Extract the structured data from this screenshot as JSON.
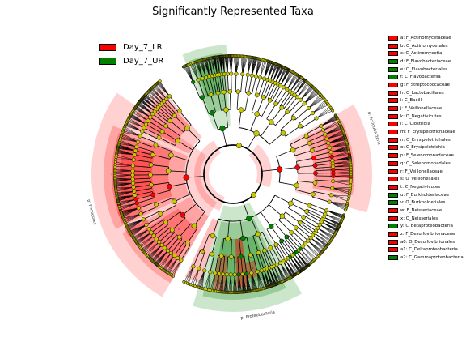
{
  "chart_data": {
    "type": "cladogram",
    "title": "Significantly Represented Taxa",
    "groups": [
      {
        "name": "Day_7_LR",
        "color": "#ff0000"
      },
      {
        "name": "Day_7_UR",
        "color": "#008000"
      }
    ],
    "sector_labels": [
      {
        "text": "p: Actinobacteria",
        "group": "Day_7_LR"
      },
      {
        "text": "p: Firmicutes",
        "group": "Day_7_LR"
      },
      {
        "text": "p: Proteobacteria",
        "group": "Day_7_UR"
      }
    ],
    "clades": [
      {
        "key": "a",
        "name": "F_Actinomycetaceae",
        "group": "Day_7_LR"
      },
      {
        "key": "b",
        "name": "O_Actinomycetales",
        "group": "Day_7_LR"
      },
      {
        "key": "c",
        "name": "C_Actinomycetia",
        "group": "Day_7_LR"
      },
      {
        "key": "d",
        "name": "F_Flavobacteriaceae",
        "group": "Day_7_UR"
      },
      {
        "key": "e",
        "name": "O_Flavobacteriales",
        "group": "Day_7_UR"
      },
      {
        "key": "f",
        "name": "C_Flavobacteriia",
        "group": "Day_7_UR"
      },
      {
        "key": "g",
        "name": "F_Streptococcaceae",
        "group": "Day_7_LR"
      },
      {
        "key": "h",
        "name": "O_Lactobacillales",
        "group": "Day_7_LR"
      },
      {
        "key": "i",
        "name": "C_Bacilli",
        "group": "Day_7_LR"
      },
      {
        "key": "j",
        "name": "F_Veillonellaceae",
        "group": "Day_7_LR"
      },
      {
        "key": "k",
        "name": "O_Negativicutes",
        "group": "Day_7_LR"
      },
      {
        "key": "l",
        "name": "C_Clostridia",
        "group": "Day_7_LR"
      },
      {
        "key": "m",
        "name": "F_Erysipelotrichaceae",
        "group": "Day_7_LR"
      },
      {
        "key": "n",
        "name": "O_Erysipelotrichales",
        "group": "Day_7_LR"
      },
      {
        "key": "o",
        "name": "C_Erysipelotrichia",
        "group": "Day_7_LR"
      },
      {
        "key": "p",
        "name": "F_Selenomonadaceae",
        "group": "Day_7_LR"
      },
      {
        "key": "q",
        "name": "O_Selenomonadales",
        "group": "Day_7_LR"
      },
      {
        "key": "r",
        "name": "F_Veillonellaceae",
        "group": "Day_7_LR"
      },
      {
        "key": "s",
        "name": "O_Veillonellales",
        "group": "Day_7_LR"
      },
      {
        "key": "t",
        "name": "C_Negativicutes",
        "group": "Day_7_LR"
      },
      {
        "key": "u",
        "name": "F_Burkholderiaceae",
        "group": "Day_7_UR"
      },
      {
        "key": "v",
        "name": "O_Burkholderiales",
        "group": "Day_7_UR"
      },
      {
        "key": "w",
        "name": "F_Neisseriaceae",
        "group": "Day_7_LR"
      },
      {
        "key": "x",
        "name": "O_Neisseriales",
        "group": "Day_7_LR"
      },
      {
        "key": "y",
        "name": "C_Betaproteobacteria",
        "group": "Day_7_UR"
      },
      {
        "key": "z",
        "name": "F_Desulfovibrionaceae",
        "group": "Day_7_LR"
      },
      {
        "key": "a0",
        "name": "O_Desulfovibrionales",
        "group": "Day_7_LR"
      },
      {
        "key": "a1",
        "name": "C_Deltaproteobacteria",
        "group": "Day_7_LR"
      },
      {
        "key": "a2",
        "name": "C_Gammaproteobacteria",
        "group": "Day_7_UR"
      }
    ]
  },
  "colors": {
    "lr": "#ff0000",
    "ur": "#008000",
    "node": "#c8c800"
  }
}
